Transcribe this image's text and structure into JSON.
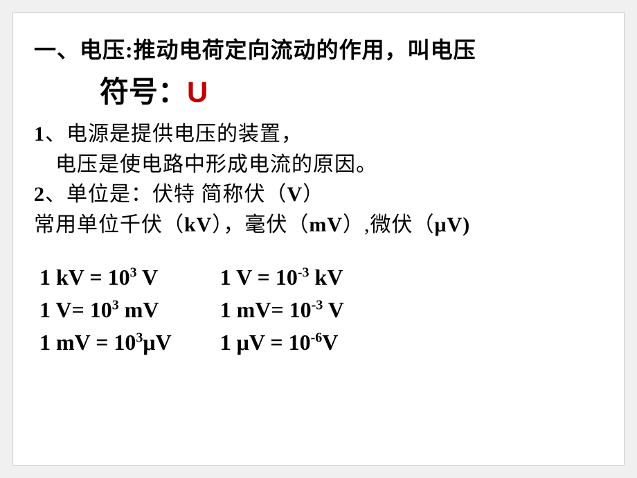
{
  "heading": {
    "line1": "一、电压:推动电荷定向流动的作用，叫电压",
    "line2_prefix": "符号：",
    "symbol": "U"
  },
  "body": {
    "point1_prefix": "1",
    "point1_line1": "、电源是提供电压的装置，",
    "point1_line2": "　电压是使电路中形成电流的原因。",
    "point2_prefix": "2",
    "point2_main": "、单位是：伏特 简称伏（",
    "point2_unit1": "V",
    "point2_close1": "）",
    "point3_main": "常用单位千伏（",
    "point3_unit1": "kV",
    "point3_mid1": "），毫伏（",
    "point3_unit2": "mV",
    "point3_mid2": "）,微伏（",
    "point3_unit3": "μV)"
  },
  "conversions": {
    "left": [
      {
        "lhs": "1  kV ",
        "eq": " = ",
        "base": " 10",
        "exp": "3",
        "rhs": " V"
      },
      {
        "lhs": "1  V",
        "eq": "=  ",
        "base": "10",
        "exp": "3",
        "rhs": " mV"
      },
      {
        "lhs": "1  mV ",
        "eq": "= ",
        "base": "10",
        "exp": "3",
        "rhs": "μV"
      }
    ],
    "right": [
      {
        "lhs": "1  V ",
        "eq": "=  ",
        "base": "10",
        "exp": "-3",
        "rhs": " kV"
      },
      {
        "lhs": "1   mV",
        "eq": "=  ",
        "base": "10",
        "exp": "-3",
        "rhs": "  V"
      },
      {
        "lhs": "1  μV ",
        "eq": "= ",
        "base": "10",
        "exp": "-6",
        "rhs": "V"
      }
    ]
  },
  "styles": {
    "symbol_color": "#c00000",
    "text_color": "#000000",
    "background": "#ffffff"
  }
}
